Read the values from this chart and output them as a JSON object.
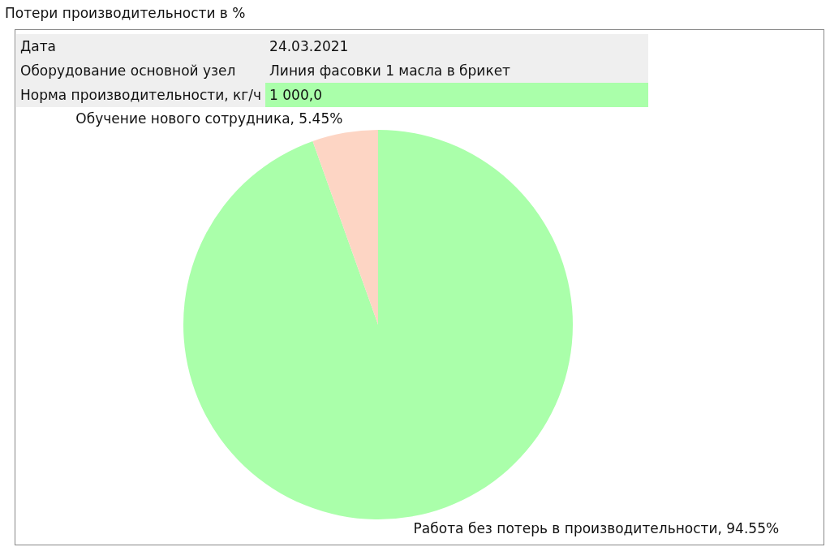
{
  "chart_data": {
    "type": "pie",
    "title": "Потери производительности в %",
    "annotations": [
      "Дата",
      "24.03.2021",
      "Оборудование основной узел",
      "Линия фасовки 1 масла в брикет",
      "Норма производительности, кг/ч",
      "1 000,0"
    ],
    "categories": [
      "Работа без потерь в производительности",
      "Обучение нового сотрудника"
    ],
    "values": [
      94.55,
      5.45
    ],
    "colors": [
      "#aaffaa",
      "#fdd5c4"
    ],
    "value_labels": [
      "94.55%",
      "5.45%"
    ],
    "legend": false
  }
}
